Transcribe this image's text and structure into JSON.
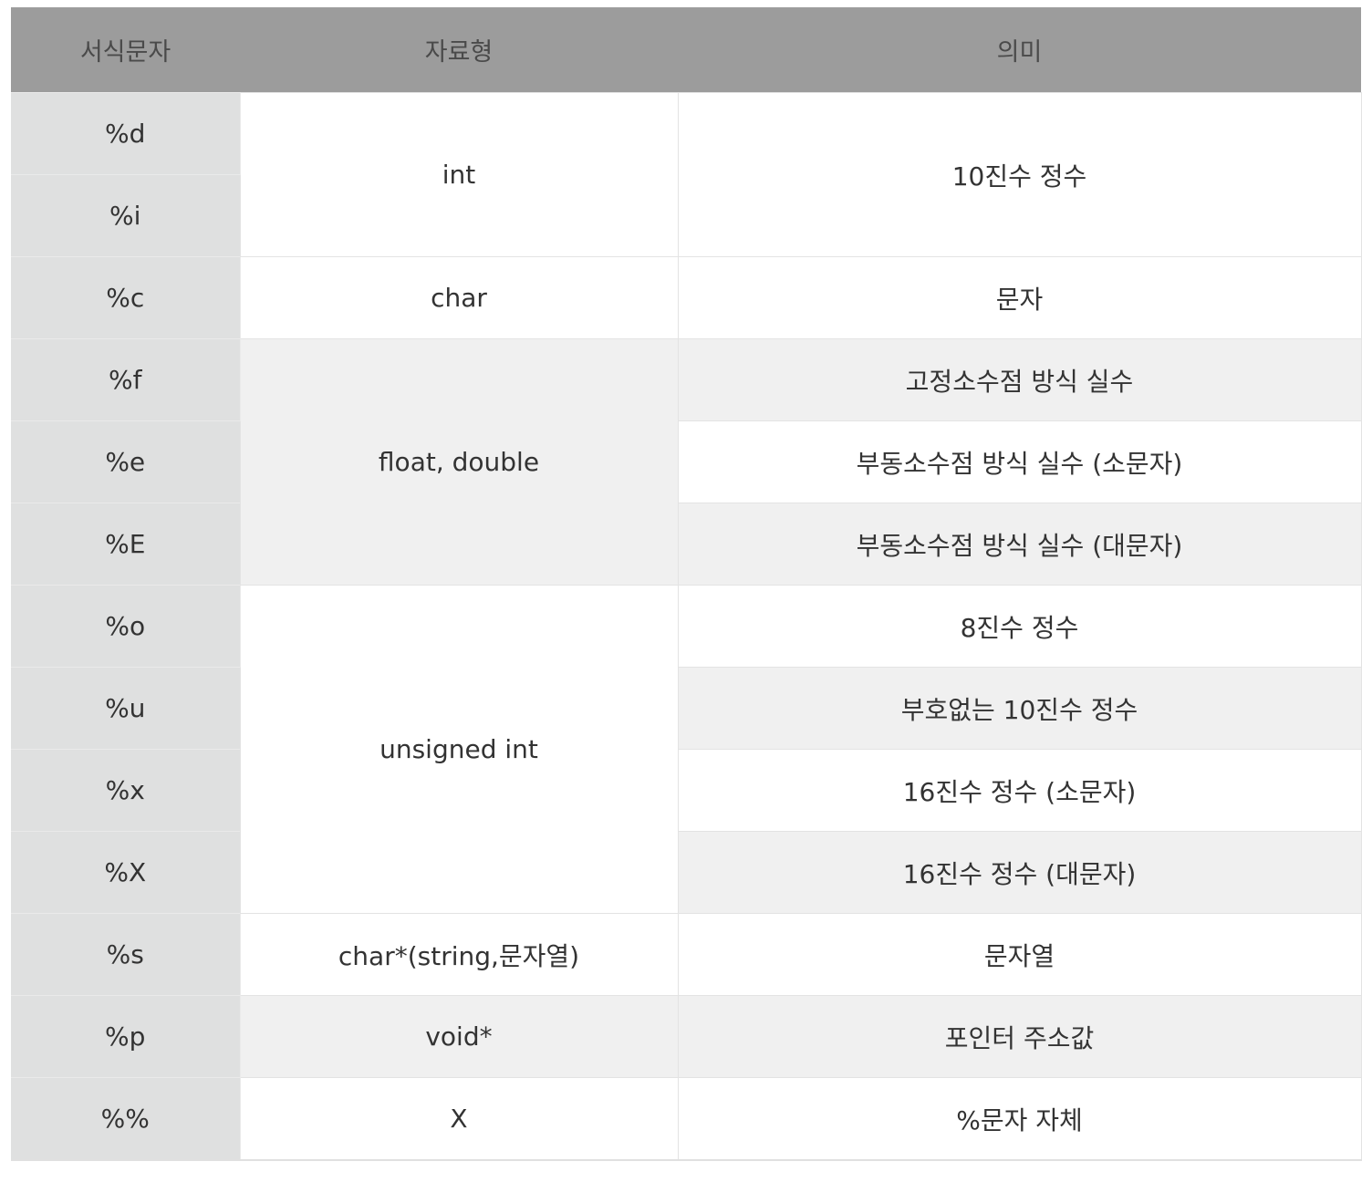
{
  "header": {
    "col1": "서식문자",
    "col2": "자료형",
    "col3": "의미"
  },
  "rows": [
    {
      "fmt": "%d"
    },
    {
      "fmt": "%i"
    },
    {
      "fmt": "%c"
    },
    {
      "fmt": "%f"
    },
    {
      "fmt": "%e"
    },
    {
      "fmt": "%E"
    },
    {
      "fmt": "%o"
    },
    {
      "fmt": "%u"
    },
    {
      "fmt": "%x"
    },
    {
      "fmt": "%X"
    },
    {
      "fmt": "%s"
    },
    {
      "fmt": "%p"
    },
    {
      "fmt": "%%"
    }
  ],
  "types": {
    "int": "int",
    "char": "char",
    "float_double": "float, double",
    "unsigned_int": "unsigned int",
    "char_ptr": "char*(string,문자열)",
    "void_ptr": "void*",
    "none": "X"
  },
  "meanings": {
    "decimal_int": "10진수 정수",
    "character": "문자",
    "fixed_point": "고정소수점 방식 실수",
    "float_lower": "부동소수점 방식 실수 (소문자)",
    "float_upper": "부동소수점 방식 실수 (대문자)",
    "octal": "8진수 정수",
    "unsigned_decimal": "부호없는 10진수 정수",
    "hex_lower": "16진수 정수 (소문자)",
    "hex_upper": "16진수 정수 (대문자)",
    "string": "문자열",
    "pointer": "포인터 주소값",
    "percent": "%문자 자체"
  },
  "colors": {
    "header_bg": "#9c9c9c",
    "format_col_bg": "#dfe0e0",
    "row_alt_bg": "#f0f0f0",
    "row_bg": "#ffffff"
  }
}
